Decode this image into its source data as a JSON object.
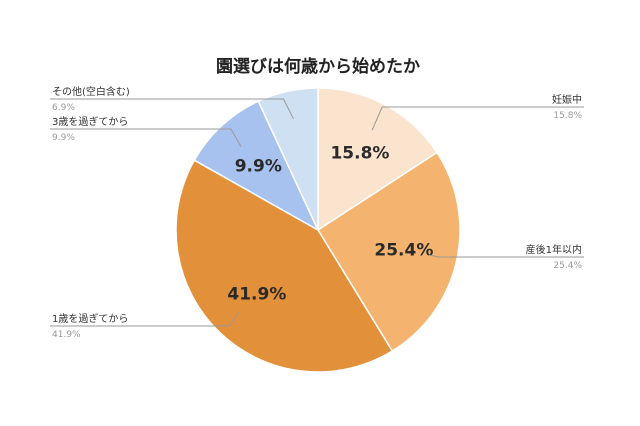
{
  "chart_data": {
    "type": "pie",
    "title": "園選びは何歳から始めたか",
    "slices": [
      {
        "label": "妊娠中",
        "value": 15.8,
        "display": "15.8%",
        "legend_value": "15.8%",
        "color": "#fbe4ce"
      },
      {
        "label": "産後1年以内",
        "value": 25.4,
        "display": "25.4%",
        "legend_value": "25.4%",
        "color": "#f4b46f"
      },
      {
        "label": "1歳を過ぎてから",
        "value": 41.9,
        "display": "41.9%",
        "legend_value": "41.9%",
        "color": "#e3903a"
      },
      {
        "label": "3歳を過ぎてから",
        "value": 9.9,
        "display": "9.9%",
        "legend_value": "9.9%",
        "color": "#a8c2ef"
      },
      {
        "label": "その他(空白含む)",
        "value": 6.9,
        "display": "",
        "legend_value": "6.9%",
        "color": "#cfe0f3"
      }
    ],
    "start_angle": "top",
    "direction": "clockwise",
    "legend_placement": "outside with leader lines"
  }
}
